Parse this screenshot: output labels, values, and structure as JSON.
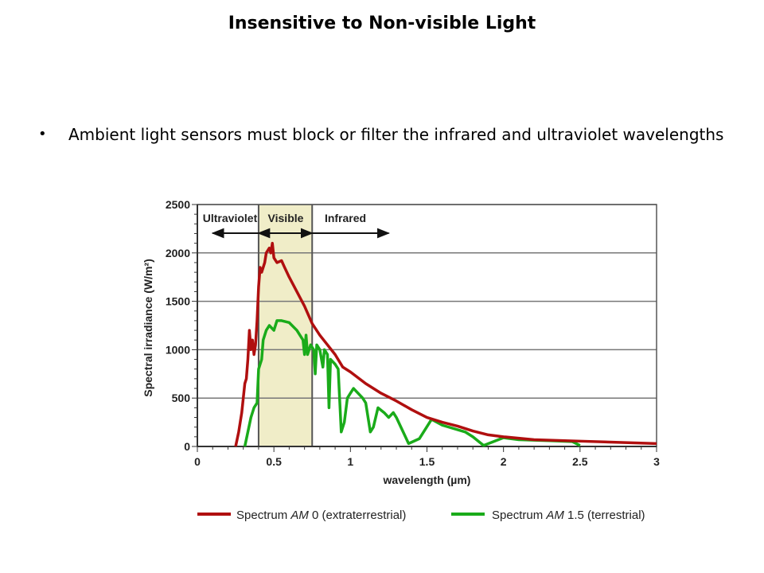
{
  "slide": {
    "title": "Insensitive to Non-visible Light",
    "bullet": "Ambient light sensors must block or filter the infrared and ultraviolet wavelengths"
  },
  "chart_data": {
    "type": "line",
    "title": "",
    "xlabel": "wavelength (µm)",
    "ylabel": "Spectral irradiance (W/m²)",
    "xlim": [
      0,
      3
    ],
    "ylim": [
      0,
      2500
    ],
    "xticks": [
      "0",
      "0.5",
      "1",
      "1.5",
      "2",
      "2.5",
      "3"
    ],
    "yticks": [
      "0",
      "500",
      "1000",
      "1500",
      "2000",
      "2500"
    ],
    "grid": true,
    "regions": [
      {
        "label": "Ultraviolet",
        "from": 0.1,
        "to": 0.4,
        "arrow": "both-left"
      },
      {
        "label": "Visible",
        "from": 0.4,
        "to": 0.75,
        "shaded": true
      },
      {
        "label": "Infrared",
        "from": 0.75,
        "to": 1.25
      }
    ],
    "legend_position": "bottom",
    "series": [
      {
        "name": "AM0",
        "legend_prefix": "Spectrum ",
        "legend_italic": "AM",
        "legend_suffix": " 0 (extraterrestrial)",
        "color": "#b00f0f",
        "points": [
          [
            0.25,
            0
          ],
          [
            0.27,
            150
          ],
          [
            0.29,
            350
          ],
          [
            0.3,
            500
          ],
          [
            0.31,
            650
          ],
          [
            0.32,
            700
          ],
          [
            0.33,
            900
          ],
          [
            0.34,
            1200
          ],
          [
            0.35,
            1000
          ],
          [
            0.36,
            1100
          ],
          [
            0.37,
            950
          ],
          [
            0.38,
            1050
          ],
          [
            0.39,
            1300
          ],
          [
            0.4,
            1650
          ],
          [
            0.41,
            1850
          ],
          [
            0.42,
            1800
          ],
          [
            0.44,
            1900
          ],
          [
            0.45,
            2000
          ],
          [
            0.47,
            2050
          ],
          [
            0.48,
            2000
          ],
          [
            0.49,
            2100
          ],
          [
            0.5,
            1950
          ],
          [
            0.52,
            1900
          ],
          [
            0.55,
            1920
          ],
          [
            0.57,
            1850
          ],
          [
            0.6,
            1750
          ],
          [
            0.65,
            1600
          ],
          [
            0.7,
            1450
          ],
          [
            0.75,
            1270
          ],
          [
            0.8,
            1150
          ],
          [
            0.85,
            1050
          ],
          [
            0.9,
            950
          ],
          [
            0.95,
            820
          ],
          [
            1.0,
            770
          ],
          [
            1.1,
            650
          ],
          [
            1.2,
            550
          ],
          [
            1.3,
            470
          ],
          [
            1.4,
            380
          ],
          [
            1.5,
            300
          ],
          [
            1.6,
            250
          ],
          [
            1.7,
            210
          ],
          [
            1.8,
            160
          ],
          [
            1.9,
            120
          ],
          [
            2.0,
            100
          ],
          [
            2.2,
            70
          ],
          [
            2.5,
            55
          ],
          [
            3.0,
            30
          ]
        ]
      },
      {
        "name": "AM1.5",
        "legend_prefix": "Spectrum ",
        "legend_italic": "AM",
        "legend_suffix": " 1.5 (terrestrial)",
        "color": "#1aab1a",
        "points": [
          [
            0.31,
            0
          ],
          [
            0.33,
            150
          ],
          [
            0.35,
            300
          ],
          [
            0.37,
            400
          ],
          [
            0.39,
            450
          ],
          [
            0.4,
            800
          ],
          [
            0.42,
            900
          ],
          [
            0.43,
            1100
          ],
          [
            0.45,
            1200
          ],
          [
            0.47,
            1250
          ],
          [
            0.5,
            1200
          ],
          [
            0.52,
            1300
          ],
          [
            0.55,
            1300
          ],
          [
            0.6,
            1280
          ],
          [
            0.65,
            1200
          ],
          [
            0.69,
            1100
          ],
          [
            0.7,
            950
          ],
          [
            0.71,
            1150
          ],
          [
            0.72,
            950
          ],
          [
            0.74,
            1050
          ],
          [
            0.76,
            1000
          ],
          [
            0.77,
            750
          ],
          [
            0.78,
            1050
          ],
          [
            0.8,
            1000
          ],
          [
            0.82,
            820
          ],
          [
            0.83,
            1000
          ],
          [
            0.85,
            950
          ],
          [
            0.86,
            400
          ],
          [
            0.87,
            900
          ],
          [
            0.9,
            850
          ],
          [
            0.92,
            800
          ],
          [
            0.94,
            150
          ],
          [
            0.96,
            250
          ],
          [
            0.98,
            500
          ],
          [
            1.0,
            550
          ],
          [
            1.02,
            600
          ],
          [
            1.08,
            500
          ],
          [
            1.1,
            450
          ],
          [
            1.13,
            150
          ],
          [
            1.15,
            200
          ],
          [
            1.18,
            400
          ],
          [
            1.22,
            350
          ],
          [
            1.25,
            300
          ],
          [
            1.28,
            350
          ],
          [
            1.3,
            300
          ],
          [
            1.38,
            30
          ],
          [
            1.45,
            80
          ],
          [
            1.53,
            280
          ],
          [
            1.6,
            220
          ],
          [
            1.75,
            150
          ],
          [
            1.8,
            100
          ],
          [
            1.87,
            10
          ],
          [
            2.0,
            90
          ],
          [
            2.1,
            70
          ],
          [
            2.3,
            60
          ],
          [
            2.45,
            50
          ],
          [
            2.5,
            10
          ]
        ]
      }
    ]
  }
}
